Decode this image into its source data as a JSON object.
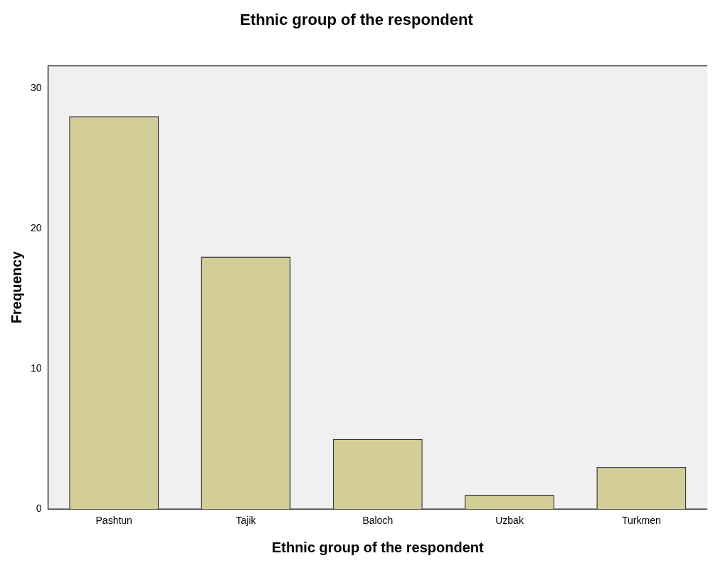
{
  "chart_data": {
    "type": "bar",
    "title": "Ethnic group of the respondent",
    "xlabel": "Ethnic group of the respondent",
    "ylabel": "Frequency",
    "categories": [
      "Pashtun",
      "Tajik",
      "Baloch",
      "Uzbak",
      "Turkmen"
    ],
    "values": [
      28,
      18,
      5,
      1,
      3
    ],
    "color": "#d3ce97",
    "ylim": [
      0,
      31.6
    ],
    "yticks": [
      0,
      10,
      20,
      30
    ],
    "grid": false,
    "legend": false
  }
}
